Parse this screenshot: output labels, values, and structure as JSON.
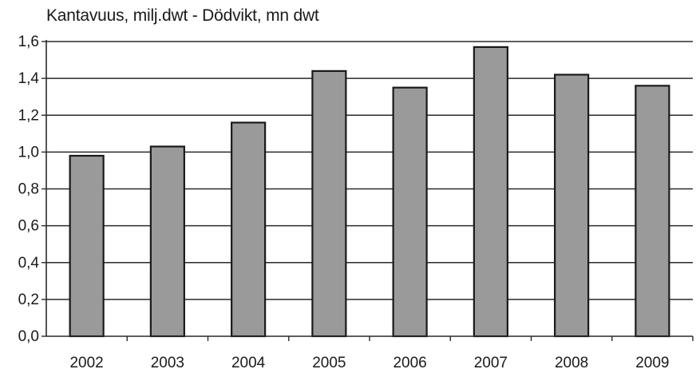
{
  "chart_data": {
    "type": "bar",
    "title": "Kantavuus, milj.dwt - Dödvikt, mn dwt",
    "xlabel": "",
    "ylabel": "",
    "categories": [
      "2002",
      "2003",
      "2004",
      "2005",
      "2006",
      "2007",
      "2008",
      "2009"
    ],
    "values": [
      0.98,
      1.03,
      1.16,
      1.44,
      1.35,
      1.57,
      1.42,
      1.36
    ],
    "ylim": [
      0,
      1.6
    ],
    "yticks": [
      "0,0",
      "0,2",
      "0,4",
      "0,6",
      "0,8",
      "1,0",
      "1,2",
      "1,4",
      "1,6"
    ],
    "grid": true,
    "legend": "none",
    "bar_color": "#9a9a9a",
    "bar_edge_color": "#1a1a1a",
    "grid_color": "#2a2a2a"
  }
}
